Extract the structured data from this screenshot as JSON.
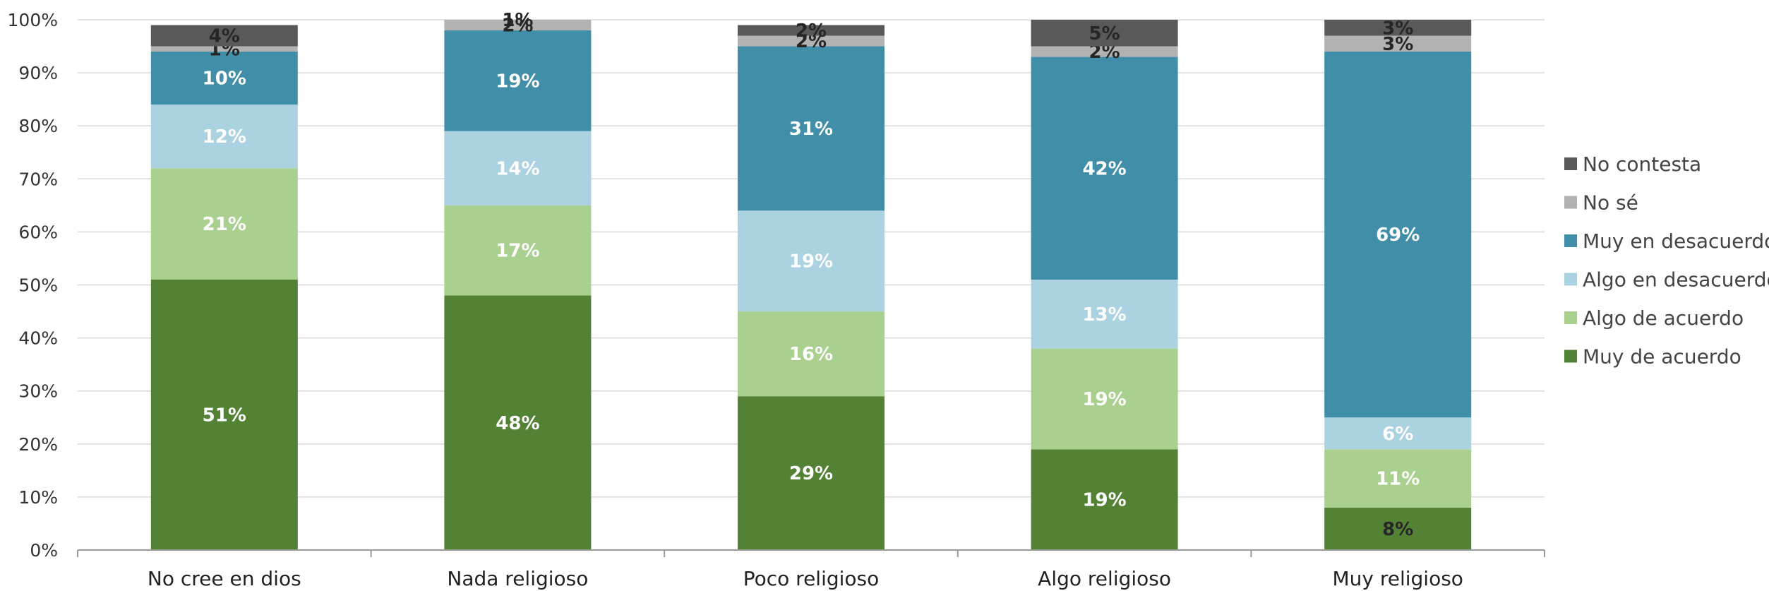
{
  "chart_data": {
    "type": "bar",
    "stacked": true,
    "categories": [
      "No cree en dios",
      "Nada religioso",
      "Poco religioso",
      "Algo religioso",
      "Muy religioso"
    ],
    "series": [
      {
        "name": "Muy de acuerdo",
        "color": "#548235",
        "label_color": "#ffffff",
        "values": [
          51,
          48,
          29,
          19,
          8
        ],
        "labels": [
          "51%",
          "48%",
          "29%",
          "19%",
          "8%"
        ]
      },
      {
        "name": "Algo de acuerdo",
        "color": "#a9d08e",
        "label_color": "#ffffff",
        "values": [
          21,
          17,
          16,
          19,
          11
        ],
        "labels": [
          "21%",
          "17%",
          "16%",
          "19%",
          "11%"
        ]
      },
      {
        "name": "Algo en desacuerdo",
        "color": "#abd2e1",
        "label_color": "#ffffff",
        "values": [
          12,
          14,
          19,
          13,
          6
        ],
        "labels": [
          "12%",
          "14%",
          "19%",
          "13%",
          "6%"
        ]
      },
      {
        "name": "Muy en desacuerdo",
        "color": "#418ea9",
        "label_color": "#ffffff",
        "values": [
          10,
          19,
          31,
          42,
          69
        ],
        "labels": [
          "10%",
          "19%",
          "31%",
          "42%",
          "69%"
        ]
      },
      {
        "name": "No sé",
        "color": "#b2b2b2",
        "label_color": "#262626",
        "values": [
          1,
          2,
          2,
          2,
          3
        ],
        "labels": [
          "1%",
          "2%",
          "2%",
          "2%",
          "3%"
        ]
      },
      {
        "name": "No contesta",
        "color": "#595959",
        "label_color": "#262626",
        "values": [
          4,
          1,
          2,
          5,
          3
        ],
        "labels": [
          "4%",
          "1%",
          "2%",
          "5%",
          "3%"
        ]
      }
    ],
    "y_ticks": [
      "0%",
      "10%",
      "20%",
      "30%",
      "40%",
      "50%",
      "60%",
      "70%",
      "80%",
      "90%",
      "100%"
    ],
    "ylim": [
      0,
      100
    ],
    "grid": true,
    "legend_position": "right",
    "title": "",
    "xlabel": "",
    "ylabel": ""
  }
}
